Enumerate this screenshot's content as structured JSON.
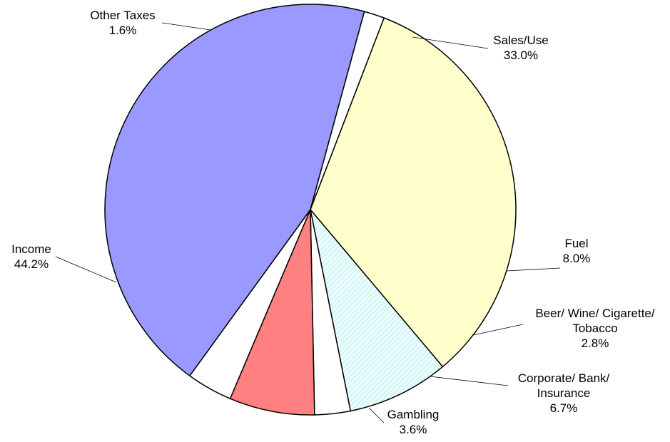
{
  "chart_data": {
    "type": "pie",
    "title": "",
    "slices": [
      {
        "name": "Sales/Use",
        "label_lines": [
          "Sales/Use"
        ],
        "pct_label": "33.0%",
        "value": 33.0,
        "color": "#ffffcc"
      },
      {
        "name": "Fuel",
        "label_lines": [
          "Fuel"
        ],
        "pct_label": "8.0%",
        "value": 8.0,
        "color": "#ccffff",
        "pattern": "hatch"
      },
      {
        "name": "Beer/ Wine/ Cigarette/ Tobacco",
        "label_lines": [
          "Beer/ Wine/ Cigarette/",
          "Tobacco"
        ],
        "pct_label": "2.8%",
        "value": 2.8,
        "color": "#ffffff"
      },
      {
        "name": "Corporate/ Bank/ Insurance",
        "label_lines": [
          "Corporate/ Bank/",
          "Insurance"
        ],
        "pct_label": "6.7%",
        "value": 6.7,
        "color": "#ff8080"
      },
      {
        "name": "Gambling",
        "label_lines": [
          "Gambling"
        ],
        "pct_label": "3.6%",
        "value": 3.6,
        "color": "#ffffff"
      },
      {
        "name": "Income",
        "label_lines": [
          "Income"
        ],
        "pct_label": "44.2%",
        "value": 44.2,
        "color": "#9999ff"
      },
      {
        "name": "Other Taxes",
        "label_lines": [
          "Other Taxes"
        ],
        "pct_label": "1.6%",
        "value": 1.6,
        "color": "#ffffff"
      }
    ],
    "start": "12 o'clock, clockwise from the Other Taxes / Sales-Use boundary",
    "legend": "none"
  }
}
